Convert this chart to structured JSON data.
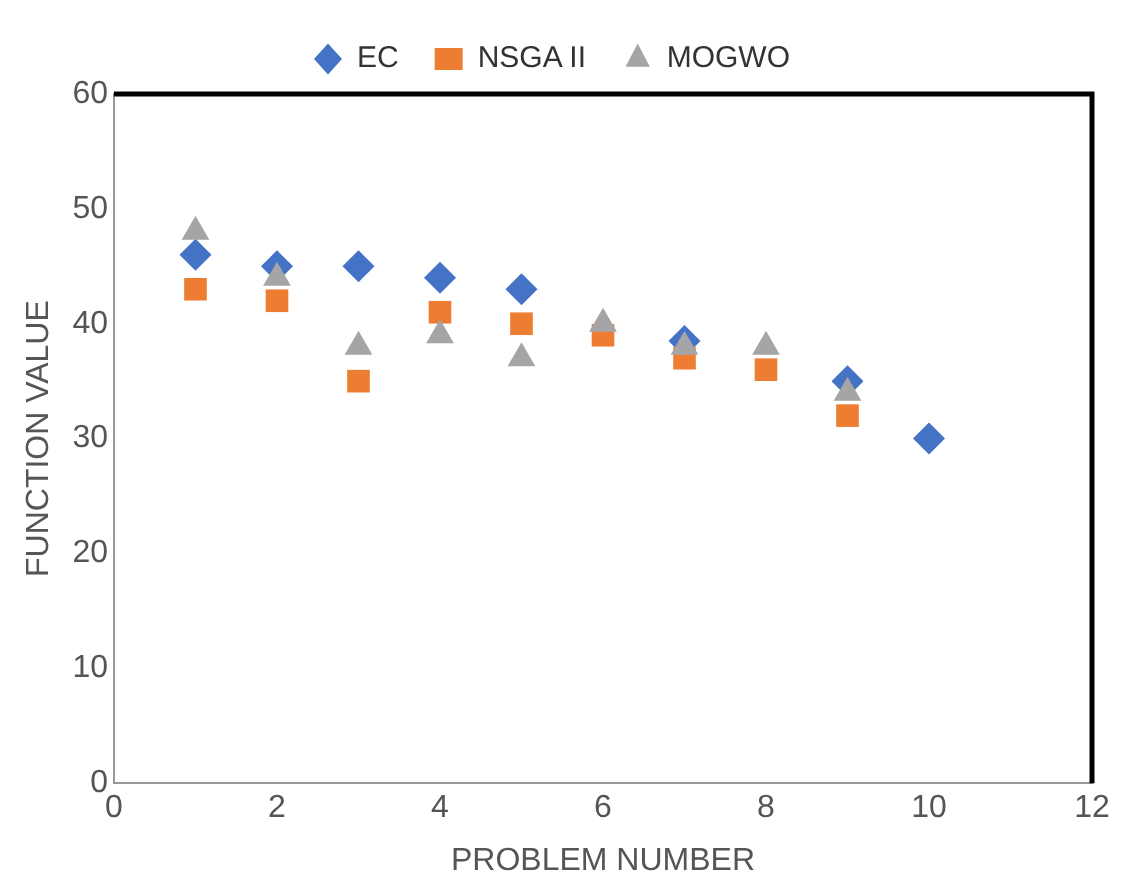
{
  "chart_data": {
    "type": "scatter",
    "xlabel": "PROBLEM NUMBER",
    "ylabel": "FUNCTION VALUE",
    "legend": "top",
    "grid": false,
    "xlim": [
      0,
      12
    ],
    "xticks": [
      0,
      2,
      4,
      6,
      8,
      10,
      12
    ],
    "ylim": [
      0,
      60
    ],
    "yticks": [
      0,
      10,
      20,
      30,
      40,
      50,
      60
    ],
    "series": [
      {
        "name": "EC",
        "color": "#4472c4",
        "marker": "diamond",
        "x": [
          1,
          2,
          3,
          4,
          5,
          6,
          7,
          8,
          9,
          10
        ],
        "values": [
          46,
          45,
          45,
          44,
          43,
          null,
          38.5,
          null,
          35,
          30
        ]
      },
      {
        "name": "NSGA II",
        "color": "#ed7d31",
        "marker": "square",
        "x": [
          1,
          2,
          3,
          4,
          5,
          6,
          7,
          8,
          9
        ],
        "values": [
          43,
          42,
          35,
          41,
          40,
          39,
          37,
          36,
          32
        ]
      },
      {
        "name": "MOGWO",
        "color": "#a5a5a5",
        "marker": "triangle",
        "x": [
          1,
          2,
          3,
          4,
          5,
          6,
          7,
          8,
          9
        ],
        "values": [
          48,
          44,
          38,
          39,
          37,
          40,
          38,
          38,
          34
        ]
      }
    ]
  }
}
